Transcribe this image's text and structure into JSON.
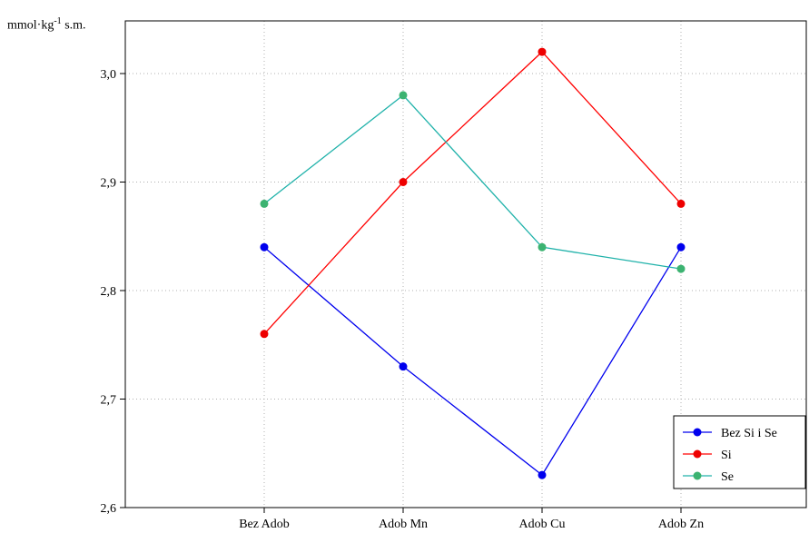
{
  "chart_data": {
    "type": "line",
    "ylabel": {
      "prefix": "mmol·kg",
      "exponent": "-1",
      "suffix": " s.m."
    },
    "categories": [
      "Bez Adob",
      "Adob Mn",
      "Adob Cu",
      "Adob Zn"
    ],
    "ylim": [
      2.6,
      3.07
    ],
    "yticks": [
      2.6,
      2.7,
      2.8,
      2.9,
      3.0
    ],
    "ytick_labels": [
      "2,6",
      "2,7",
      "2,8",
      "2,9",
      "3,0"
    ],
    "grid": true,
    "legend_position": "bottom-right",
    "series": [
      {
        "name": "Bez Si i Se",
        "color": "#0000ee",
        "marker_color": "#0000ee",
        "values": [
          2.84,
          2.73,
          2.63,
          2.84
        ]
      },
      {
        "name": "Si",
        "color": "#ff0000",
        "marker_color": "#ee0000",
        "values": [
          2.76,
          2.9,
          3.02,
          2.88
        ]
      },
      {
        "name": "Se",
        "color": "#20b2aa",
        "marker_color": "#3cb371",
        "values": [
          2.88,
          2.98,
          2.84,
          2.82
        ]
      }
    ]
  }
}
